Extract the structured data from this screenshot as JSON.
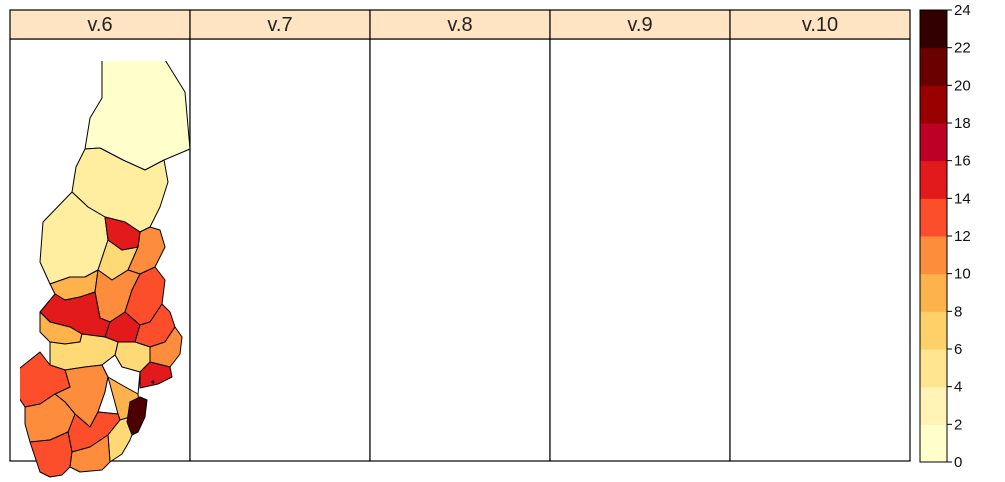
{
  "panels": [
    {
      "label": "v.6",
      "fills": [
        "#FFFFCC",
        "#FFEDA0",
        "#FFEDA0",
        "#FED976",
        "#FEB24C",
        "#FD8D3C",
        "#E31A1C",
        "#FD8D3C",
        "#E31A1C",
        "#FC4E2A",
        "#E31A1C",
        "#FC4E2A",
        "#FEB24C",
        "#FD8D3C",
        "#FED976",
        "#FED976",
        "#FD8D3C",
        "#FC4E2A",
        "#FFFFFF",
        "#E31A1C",
        "#FEB24C",
        "#FC4E2A",
        "#FD8D3C",
        "#FED976",
        "#4D0000"
      ]
    },
    {
      "label": "v.7",
      "fills": [
        "#FFEDA0",
        "#FFEDA0",
        "#FFEDA0",
        "#FD8D3C",
        "#FEB24C",
        "#FD8D3C",
        "#BD0026",
        "#FEB24C",
        "#BD0026",
        "#E31A1C",
        "#FD8D3C",
        "#E31A1C",
        "#FED976",
        "#BD0026",
        "#FED976",
        "#FC4E2A",
        "#FD8D3C",
        "#E31A1C",
        "#800026",
        "#BD0026",
        "#FED976",
        "#FC4E2A",
        "#BD0026",
        "#FD8D3C",
        "#FC4E2A"
      ]
    },
    {
      "label": "v.8",
      "fills": [
        "#FFEDA0",
        "#FFFFCC",
        "#FFEDA0",
        "#FD8D3C",
        "#FEB24C",
        "#FD8D3C",
        "#FD8D3C",
        "#FEB24C",
        "#990000",
        "#FC4E2A",
        "#FEB24C",
        "#FD8D3C",
        "#FFEDA0",
        "#FD8D3C",
        "#FED976",
        "#FEB24C",
        "#FD8D3C",
        "#FC4E2A",
        "#BD0026",
        "#FC4E2A",
        "#FED976",
        "#FEB24C",
        "#BD0026",
        "#FD8D3C",
        "#000000"
      ]
    },
    {
      "label": "v.9",
      "fills": [
        "#FFEDA0",
        "#FED976",
        "#FFEDA0",
        "#FFEDA0",
        "#FFEDA0",
        "#FED976",
        "#FED976",
        "#FFEDA0",
        "#BD0026",
        "#FD8D3C",
        "#FED976",
        "#FEB24C",
        "#FED976",
        "#FED976",
        "#FFEDA0",
        "#FEB24C",
        "#FD8D3C",
        "#FEB24C",
        "#FD8D3C",
        "#FEB24C",
        "#FFF3C4",
        "#FEB24C",
        "#FD8D3C",
        "#FED976",
        "#660000"
      ]
    },
    {
      "label": "v.10",
      "fills": [
        "#FFEDA0",
        "#FFEDA0",
        "#FFEDA0",
        "#FFEDA0",
        "#FFEDA0",
        "#FD8D3C",
        "#FFEDA0",
        "#FEB24C",
        "#FD8D3C",
        "#FC4E2A",
        "#FEB24C",
        "#FC4E2A",
        "#FED976",
        "#FEB24C",
        "#FED976",
        "#FEB24C",
        "#FED976",
        "#FEB24C",
        "#FFF3C4",
        "#FEB24C",
        "#FED976",
        "#FEB24C",
        "#FEB24C",
        "#FFEDA0",
        "#FC4E2A"
      ]
    }
  ],
  "legend": {
    "ticks": [
      "0",
      "2",
      "4",
      "6",
      "8",
      "10",
      "12",
      "14",
      "16",
      "18",
      "20",
      "22",
      "24"
    ],
    "colors": [
      "#FFFFCC",
      "#FFF3B5",
      "#FFE58F",
      "#FED06A",
      "#FEB24C",
      "#FD8D3C",
      "#FC4E2A",
      "#E31A1C",
      "#BD0026",
      "#990000",
      "#6B0000",
      "#330000"
    ]
  }
}
